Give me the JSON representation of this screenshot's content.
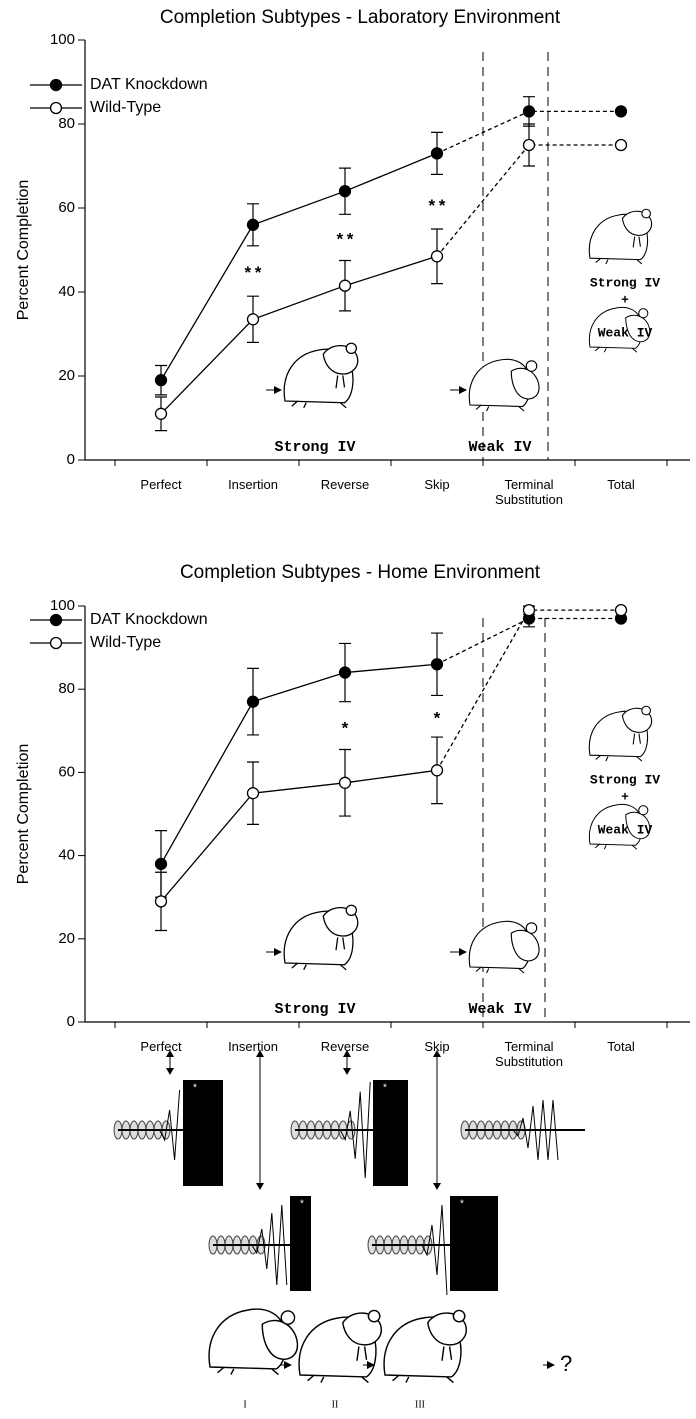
{
  "chart_data": [
    {
      "type": "line",
      "title": "Completion Subtypes - Laboratory Environment",
      "ylabel": "Percent Completion",
      "categories": [
        "Perfect",
        "Insertion",
        "Reverse",
        "Skip",
        "Terminal Substitution",
        "Total"
      ],
      "ylim": [
        0,
        100
      ],
      "yticks": [
        0,
        20,
        40,
        60,
        80,
        100
      ],
      "dashed_from": "Skip",
      "series": [
        {
          "name": "DAT Knockdown",
          "color": "#000000",
          "marker": "filled",
          "values": [
            19,
            56,
            64,
            73,
            83,
            83
          ],
          "errors": [
            3.5,
            5,
            5.5,
            5,
            3.5,
            null
          ]
        },
        {
          "name": "Wild-Type",
          "color": "#000000",
          "marker": "open",
          "values": [
            11,
            33.5,
            41.5,
            48.5,
            75,
            75
          ],
          "errors": [
            4,
            5.5,
            6,
            6.5,
            5,
            null
          ]
        }
      ],
      "annotations": [
        {
          "text": "**",
          "category": "Insertion"
        },
        {
          "text": "**",
          "category": "Reverse"
        },
        {
          "text": "**",
          "category": "Skip"
        }
      ],
      "illustrations": {
        "strong": "Strong IV",
        "weak": "Weak IV",
        "right_strong": "Strong IV",
        "plus": "+",
        "right_weak": "Weak IV"
      }
    },
    {
      "type": "line",
      "title": "Completion Subtypes - Home Environment",
      "ylabel": "Percent Completion",
      "categories": [
        "Perfect",
        "Insertion",
        "Reverse",
        "Skip",
        "Terminal Substitution",
        "Total"
      ],
      "ylim": [
        0,
        100
      ],
      "yticks": [
        0,
        20,
        40,
        60,
        80,
        100
      ],
      "dashed_from": "Skip",
      "series": [
        {
          "name": "DAT Knockdown",
          "color": "#000000",
          "marker": "filled",
          "values": [
            38,
            77,
            84,
            86,
            97,
            97
          ],
          "errors": [
            8,
            8,
            7,
            7.5,
            2,
            null
          ]
        },
        {
          "name": "Wild-Type",
          "color": "#000000",
          "marker": "open",
          "values": [
            29,
            55,
            57.5,
            60.5,
            99,
            99
          ],
          "errors": [
            7,
            7.5,
            8,
            8,
            1,
            null
          ]
        }
      ],
      "annotations": [
        {
          "text": "*",
          "category": "Reverse"
        },
        {
          "text": "*",
          "category": "Skip"
        }
      ],
      "illustrations": {
        "strong": "Strong IV",
        "weak": "Weak IV",
        "right_strong": "Strong IV",
        "plus": "+",
        "right_weak": "Weak IV"
      }
    }
  ],
  "bottom": {
    "spectrogram_marks": [
      "*",
      "*",
      "*",
      "*"
    ],
    "stages": [
      "I",
      "II",
      "III"
    ],
    "question": "?"
  }
}
